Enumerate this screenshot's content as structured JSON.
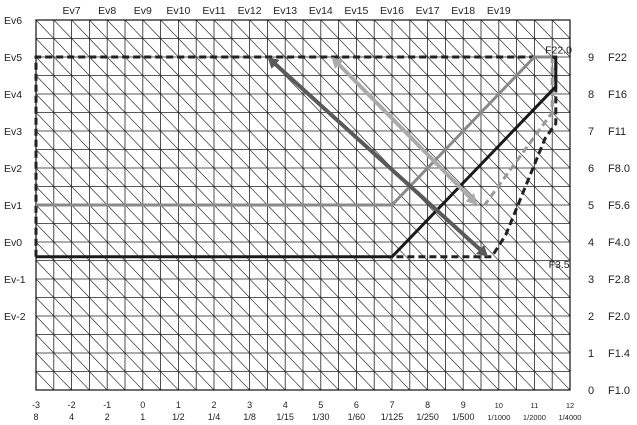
{
  "chart_data": {
    "type": "line",
    "title": "",
    "xlabel": "",
    "ylabel": "",
    "x_range": [
      -3,
      12
    ],
    "y_range": [
      0,
      10
    ],
    "grid": true,
    "grid_diagonals": true,
    "x_ticks": [
      -3,
      -2,
      -1,
      0,
      1,
      2,
      3,
      4,
      5,
      6,
      7,
      8,
      9,
      10,
      11,
      12
    ],
    "x_labels_top": [
      "-3",
      "-2",
      "-1",
      "0",
      "1",
      "2",
      "3",
      "4",
      "5",
      "6",
      "7",
      "8",
      "9",
      "10",
      "11",
      "12"
    ],
    "x_labels_bottom": [
      "8",
      "4",
      "2",
      "1",
      "1/2",
      "1/4",
      "1/8",
      "1/15",
      "1/30",
      "1/60",
      "1/125",
      "1/250",
      "1/500",
      "1/1000",
      "1/2000",
      "1/4000"
    ],
    "left_labels": [
      {
        "text": "Ev6",
        "y": 10
      },
      {
        "text": "Ev5",
        "y": 9
      },
      {
        "text": "Ev4",
        "y": 8
      },
      {
        "text": "Ev3",
        "y": 7
      },
      {
        "text": "Ev2",
        "y": 6
      },
      {
        "text": "Ev1",
        "y": 5
      },
      {
        "text": "Ev0",
        "y": 4
      },
      {
        "text": "Ev-1",
        "y": 3
      },
      {
        "text": "Ev-2",
        "y": 2
      }
    ],
    "top_labels": [
      {
        "text": "Ev7",
        "x": -2
      },
      {
        "text": "Ev8",
        "x": -1
      },
      {
        "text": "Ev9",
        "x": 0
      },
      {
        "text": "Ev10",
        "x": 1
      },
      {
        "text": "Ev11",
        "x": 2
      },
      {
        "text": "Ev12",
        "x": 3
      },
      {
        "text": "Ev13",
        "x": 4
      },
      {
        "text": "Ev14",
        "x": 5
      },
      {
        "text": "Ev15",
        "x": 6
      },
      {
        "text": "Ev16",
        "x": 7
      },
      {
        "text": "Ev17",
        "x": 8
      },
      {
        "text": "Ev18",
        "x": 9
      },
      {
        "text": "Ev19",
        "x": 10
      }
    ],
    "right_ticks": [
      {
        "value": "9",
        "f": "F22",
        "y": 9
      },
      {
        "value": "8",
        "f": "F16",
        "y": 8
      },
      {
        "value": "7",
        "f": "F11",
        "y": 7
      },
      {
        "value": "6",
        "f": "F8.0",
        "y": 6
      },
      {
        "value": "5",
        "f": "F5.6",
        "y": 5
      },
      {
        "value": "4",
        "f": "F4.0",
        "y": 4
      },
      {
        "value": "3",
        "f": "F2.8",
        "y": 3
      },
      {
        "value": "2",
        "f": "F2.0",
        "y": 2
      },
      {
        "value": "1",
        "f": "F1.4",
        "y": 1
      },
      {
        "value": "0",
        "f": "F1.0",
        "y": 0
      }
    ],
    "annotations": [
      {
        "text": "F22.0",
        "x": 11.3,
        "y": 9.1
      },
      {
        "text": "F3.5",
        "x": 11.4,
        "y": 3.3
      }
    ],
    "series": [
      {
        "color": "#999999",
        "style": "dashed",
        "width": 3,
        "points": [
          [
            -3,
            3.6
          ],
          [
            -3,
            9
          ],
          [
            11.5,
            9
          ],
          [
            11.5,
            7.5
          ],
          [
            9.6,
            5
          ]
        ]
      },
      {
        "color": "#222222",
        "style": "dashed",
        "width": 3,
        "points": [
          [
            -3,
            3.6
          ],
          [
            -3,
            9
          ],
          [
            11.6,
            9
          ],
          [
            11.6,
            7.2
          ],
          [
            11.3,
            6.8
          ],
          [
            10.2,
            4.2
          ],
          [
            9.8,
            3.6
          ],
          [
            7,
            3.6
          ]
        ]
      },
      {
        "color": "#8a8a8a",
        "style": "solid",
        "width": 3,
        "points": [
          [
            -3,
            5
          ],
          [
            7,
            5
          ],
          [
            11,
            9
          ],
          [
            11.5,
            9
          ]
        ]
      },
      {
        "color": "#1a1a1a",
        "style": "solid",
        "width": 3,
        "points": [
          [
            -3,
            3.6
          ],
          [
            7,
            3.6
          ],
          [
            11.6,
            8.2
          ],
          [
            11.6,
            9
          ]
        ]
      }
    ],
    "arrows": [
      {
        "color": "#5a5a5a",
        "from": [
          9.7,
          3.6
        ],
        "to": [
          3.5,
          9
        ]
      },
      {
        "color": "#aaaaaa",
        "from": [
          9.4,
          5
        ],
        "to": [
          5.3,
          9
        ]
      }
    ]
  }
}
